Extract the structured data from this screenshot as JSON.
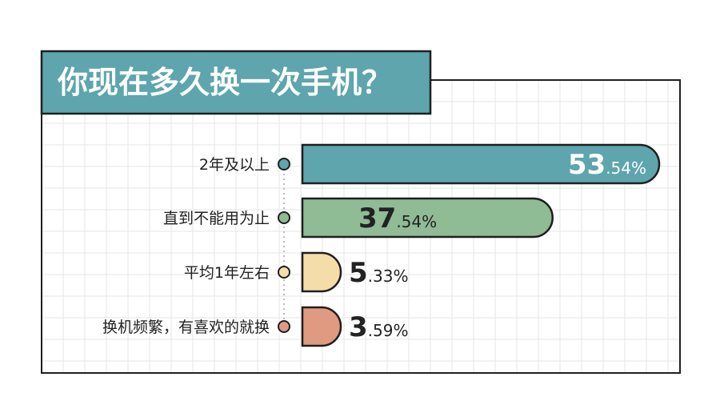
{
  "chart_data": {
    "type": "bar",
    "title": "你现在多久换一次手机？",
    "categories": [
      "2年及以上",
      "直到不能用为止",
      "平均1年左右",
      "换机频繁，有喜欢的就换"
    ],
    "values": [
      53.54,
      37.54,
      5.33,
      3.59
    ],
    "value_labels": [
      {
        "big": "53",
        "small": ".54%"
      },
      {
        "big": "37",
        "small": ".54%"
      },
      {
        "big": "5",
        "small": ".33%"
      },
      {
        "big": "3",
        "small": ".59%"
      }
    ],
    "unit": "%",
    "grid": true,
    "colors": [
      "#5ea5ad",
      "#8fbb95",
      "#f5ddaa",
      "#e09a82"
    ],
    "label_inside": [
      true,
      true,
      false,
      false
    ]
  },
  "palette": {
    "title_bg": "#5ea5ad",
    "title_text": "#ffffff",
    "outline": "#1f1f1f",
    "grid": "#e6e6e6",
    "label_text": "#222222"
  }
}
